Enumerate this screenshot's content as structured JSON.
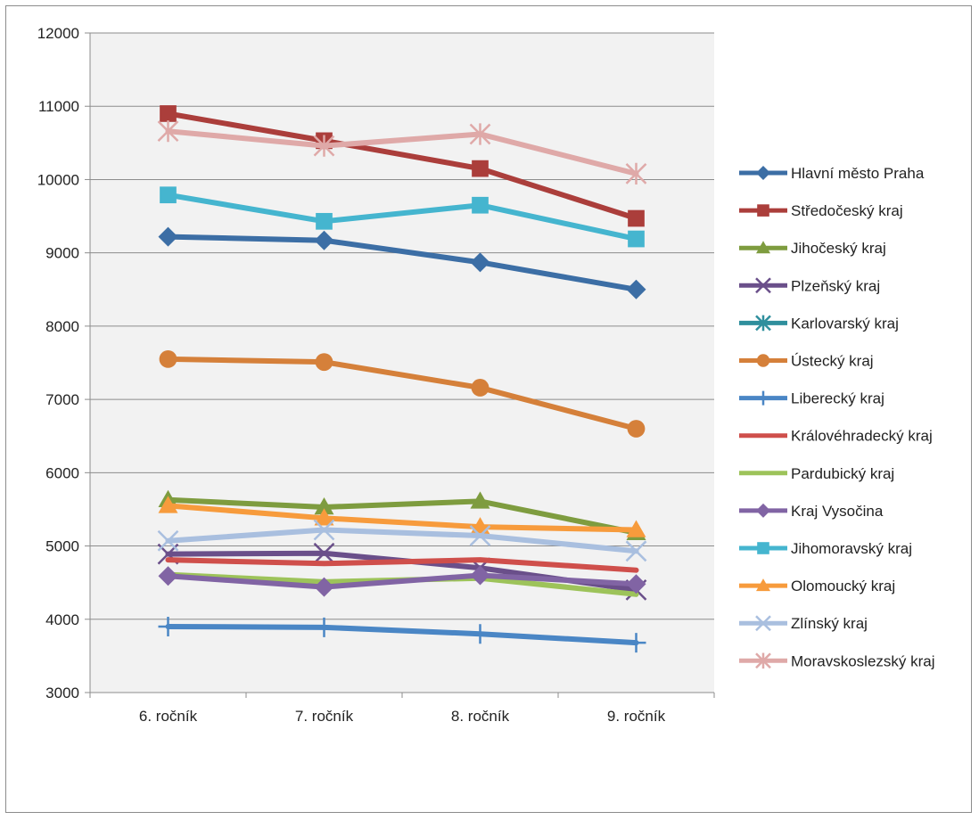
{
  "chart_data": {
    "type": "line",
    "categories": [
      "6. ročník",
      "7. ročník",
      "8. ročník",
      "9. ročník"
    ],
    "ylim": [
      3000,
      12000
    ],
    "yticks": [
      3000,
      4000,
      5000,
      6000,
      7000,
      8000,
      9000,
      10000,
      11000,
      12000
    ],
    "grid": true,
    "legend": "right",
    "plot_background": "#f2f2f2",
    "gridline_color": "#8c8c8c",
    "series": [
      {
        "name": "Hlavní město Praha",
        "values": [
          9220,
          9170,
          8870,
          8500
        ],
        "color": "#3c6ea5",
        "marker": "diamond"
      },
      {
        "name": "Středočeský kraj",
        "values": [
          10900,
          10530,
          10150,
          9470
        ],
        "color": "#ab3e3b",
        "marker": "square"
      },
      {
        "name": "Jihočeský kraj",
        "values": [
          5630,
          5530,
          5610,
          5180
        ],
        "color": "#7e9c3f",
        "marker": "triangle"
      },
      {
        "name": "Plzeňský kraj",
        "values": [
          4890,
          4900,
          4700,
          4400
        ],
        "color": "#6a4f8a",
        "marker": "x"
      },
      {
        "name": "Karlovarský kraj",
        "values": [
          null,
          null,
          null,
          null
        ],
        "color": "#2f8f9d",
        "marker": "asterisk"
      },
      {
        "name": "Ústecký kraj",
        "values": [
          7550,
          7510,
          7160,
          6600
        ],
        "color": "#d5803a",
        "marker": "circle"
      },
      {
        "name": "Liberecký kraj",
        "values": [
          3900,
          3890,
          3800,
          3680
        ],
        "color": "#4a86c5",
        "marker": "plus"
      },
      {
        "name": "Královéhradecký kraj",
        "values": [
          4810,
          4760,
          4810,
          4670
        ],
        "color": "#cf4f4b",
        "marker": "none"
      },
      {
        "name": "Pardubický kraj",
        "values": [
          4610,
          4510,
          4560,
          4340
        ],
        "color": "#9dc35a",
        "marker": "none"
      },
      {
        "name": "Kraj Vysočina",
        "values": [
          4590,
          4440,
          4600,
          4480
        ],
        "color": "#8164a4",
        "marker": "diamond"
      },
      {
        "name": "Jihomoravský kraj",
        "values": [
          9790,
          9430,
          9650,
          9190
        ],
        "color": "#45b5cf",
        "marker": "square"
      },
      {
        "name": "Olomoucký kraj",
        "values": [
          5550,
          5380,
          5260,
          5220
        ],
        "color": "#f79b3c",
        "marker": "triangle"
      },
      {
        "name": "Zlínský kraj",
        "values": [
          5070,
          5220,
          5140,
          4930
        ],
        "color": "#a9bfdf",
        "marker": "x"
      },
      {
        "name": "Moravskoslezský kraj",
        "values": [
          10660,
          10460,
          10620,
          10080
        ],
        "color": "#dfa9a8",
        "marker": "asterisk"
      }
    ]
  }
}
